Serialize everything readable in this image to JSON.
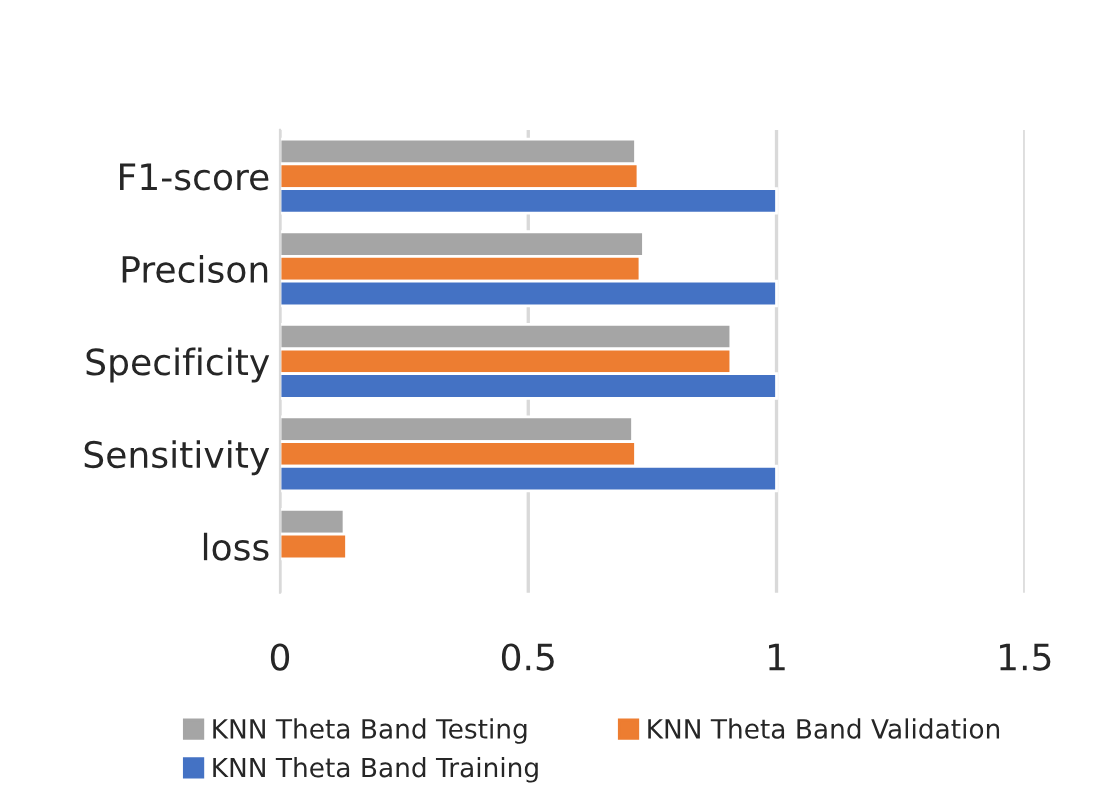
{
  "chart_data": {
    "type": "bar",
    "orientation": "horizontal",
    "categories": [
      "F1-score",
      "Precison",
      "Specificity",
      "Sensitivity",
      "loss"
    ],
    "series": [
      {
        "name": "KNN Theta Band Testing",
        "color": "#a5a5a5",
        "values": [
          0.716,
          0.732,
          0.908,
          0.71,
          0.129
        ]
      },
      {
        "name": "KNN Theta Band Validation",
        "color": "#ed7d31",
        "values": [
          0.721,
          0.725,
          0.908,
          0.716,
          0.134
        ]
      },
      {
        "name": "KNN Theta Band Training",
        "color": "#4472c4",
        "values": [
          1,
          1,
          1,
          1,
          null
        ]
      }
    ],
    "xlim": [
      0,
      1.5
    ],
    "xticks": [
      0,
      0.5,
      1,
      1.5
    ],
    "grid": "x",
    "legend": "bottom"
  }
}
